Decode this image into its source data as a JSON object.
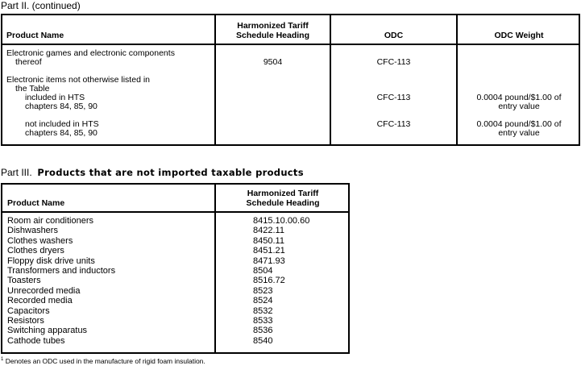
{
  "part2": {
    "title": "Part II. (continued)",
    "headers": [
      "Product Name",
      "Harmonized Tariff\nSchedule Heading",
      "ODC",
      "ODC Weight"
    ],
    "rows": [
      {
        "product": "Electronic games and electronic components",
        "product_cont": "thereof",
        "hts": "9504",
        "odc": "CFC-113",
        "weight": ""
      },
      {
        "product": "Electronic items not otherwise listed in",
        "product_cont": "the Table"
      },
      {
        "product": "included in HTS",
        "product_cont": "chapters 84, 85, 90",
        "hts": "",
        "odc": "CFC-113",
        "weight": "0.0004 pound/$1.00 of",
        "weight_cont": "entry value"
      },
      {
        "product": "not included in HTS",
        "product_cont": "chapters 84, 85, 90",
        "hts": "",
        "odc": "CFC-113",
        "weight": "0.0004 pound/$1.00 of",
        "weight_cont": "entry value"
      }
    ]
  },
  "part3": {
    "label": "Part III.",
    "title": "Products that are not imported taxable products",
    "headers": [
      "Product Name",
      "Harmonized Tariff\nSchedule Heading"
    ],
    "rows": [
      {
        "product": "Room air conditioners",
        "hts": "8415.10.00.60"
      },
      {
        "product": "Dishwashers",
        "hts": "8422.11"
      },
      {
        "product": "Clothes washers",
        "hts": "8450.11"
      },
      {
        "product": "Clothes dryers",
        "hts": "8451.21"
      },
      {
        "product": "Floppy disk drive units",
        "hts": "8471.93"
      },
      {
        "product": "Transformers and inductors",
        "hts": "8504"
      },
      {
        "product": "Toasters",
        "hts": "8516.72"
      },
      {
        "product": "Unrecorded media",
        "hts": "8523"
      },
      {
        "product": "Recorded media",
        "hts": "8524"
      },
      {
        "product": "Capacitors",
        "hts": "8532"
      },
      {
        "product": "Resistors",
        "hts": "8533"
      },
      {
        "product": "Switching apparatus",
        "hts": "8536"
      },
      {
        "product": "Cathode tubes",
        "hts": "8540"
      }
    ]
  },
  "footnote": {
    "marker": "1",
    "text": "Denotes an ODC used in the manufacture of rigid foam insulation."
  }
}
